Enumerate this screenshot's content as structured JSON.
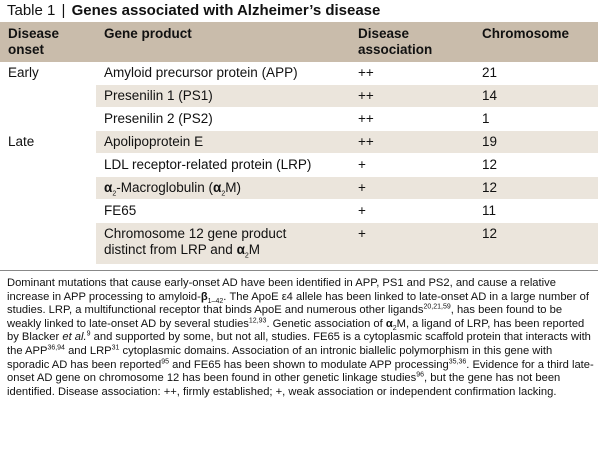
{
  "title": {
    "label": "Table 1",
    "separator": "|",
    "text": "Genes associated with Alzheimer’s disease"
  },
  "table": {
    "headers": {
      "disease_onset_line1": "Disease",
      "disease_onset_line2": "onset",
      "gene_product": "Gene product",
      "disease_association_line1": "Disease",
      "disease_association_line2": "association",
      "chromosome": "Chromosome"
    },
    "rows": [
      {
        "onset": "Early",
        "gene_product": "Amyloid precursor protein (APP)",
        "association": "++",
        "chromosome": "21"
      },
      {
        "onset": "",
        "gene_product": "Presenilin 1 (PS1)",
        "association": "++",
        "chromosome": "14"
      },
      {
        "onset": "",
        "gene_product": "Presenilin 2 (PS2)",
        "association": "++",
        "chromosome": "1"
      },
      {
        "onset": "Late",
        "gene_product": "Apolipoprotein E",
        "association": "++",
        "chromosome": "19"
      },
      {
        "onset": "",
        "gene_product": "LDL receptor-related protein (LRP)",
        "association": "+",
        "chromosome": "12"
      },
      {
        "onset": "",
        "gene_product_parts": {
          "alpha": "α",
          "sub2": "2",
          "rest": "-Macroglobulin (",
          "alpha2": "α",
          "sub2b": "2",
          "end": "M)"
        },
        "association": "+",
        "chromosome": "12"
      },
      {
        "onset": "",
        "gene_product": "FE65",
        "association": "+",
        "chromosome": "11"
      },
      {
        "onset": "",
        "gene_product_parts": {
          "line1": "Chromosome 12 gene product",
          "line2a": "distinct from LRP and ",
          "alpha": "α",
          "sub2": "2",
          "end": "M"
        },
        "association": "+",
        "chromosome": "12"
      }
    ]
  },
  "footnote": {
    "s1": "Dominant mutations that cause early-onset AD have been identified in APP, PS1 and PS2, and cause a relative increase in APP processing to amyloid-",
    "beta": "β",
    "beta_sub": "1–42",
    "s2": ". The ApoE ε4 allele has been linked to late-onset AD in a large number of studies. LRP, a multifunctional receptor that binds ApoE and numerous other ligands",
    "ref1": "20,21,59",
    "s3": ", has been found to be weakly linked to late-onset AD by several studies",
    "ref2": "12,93",
    "s4": ". Genetic association of ",
    "alpha": "α",
    "alpha_sub": "2",
    "s5": "M, a ligand of LRP, has been reported by Blacker ",
    "etal": "et al.",
    "ref3": "9",
    "s6": " and supported by some, but not all, studies. FE65 is a cytoplasmic scaffold protein that interacts with the APP",
    "ref4": "36,94",
    "s7": " and LRP",
    "ref5": "31",
    "s8": " cytoplasmic domains. Association of an intronic biallelic polymorphism in this gene with sporadic AD has been reported",
    "ref6": "95",
    "s9": " and FE65 has been shown to modulate APP processing",
    "ref7": "35,36",
    "s10": ". Evidence for a third late-onset AD gene on chromosome 12 has been found in other genetic linkage studies",
    "ref8": "96",
    "s11": ", but the gene has not been identified. Disease association: ++, firmly established; +, weak association or independent confirmation lacking."
  }
}
